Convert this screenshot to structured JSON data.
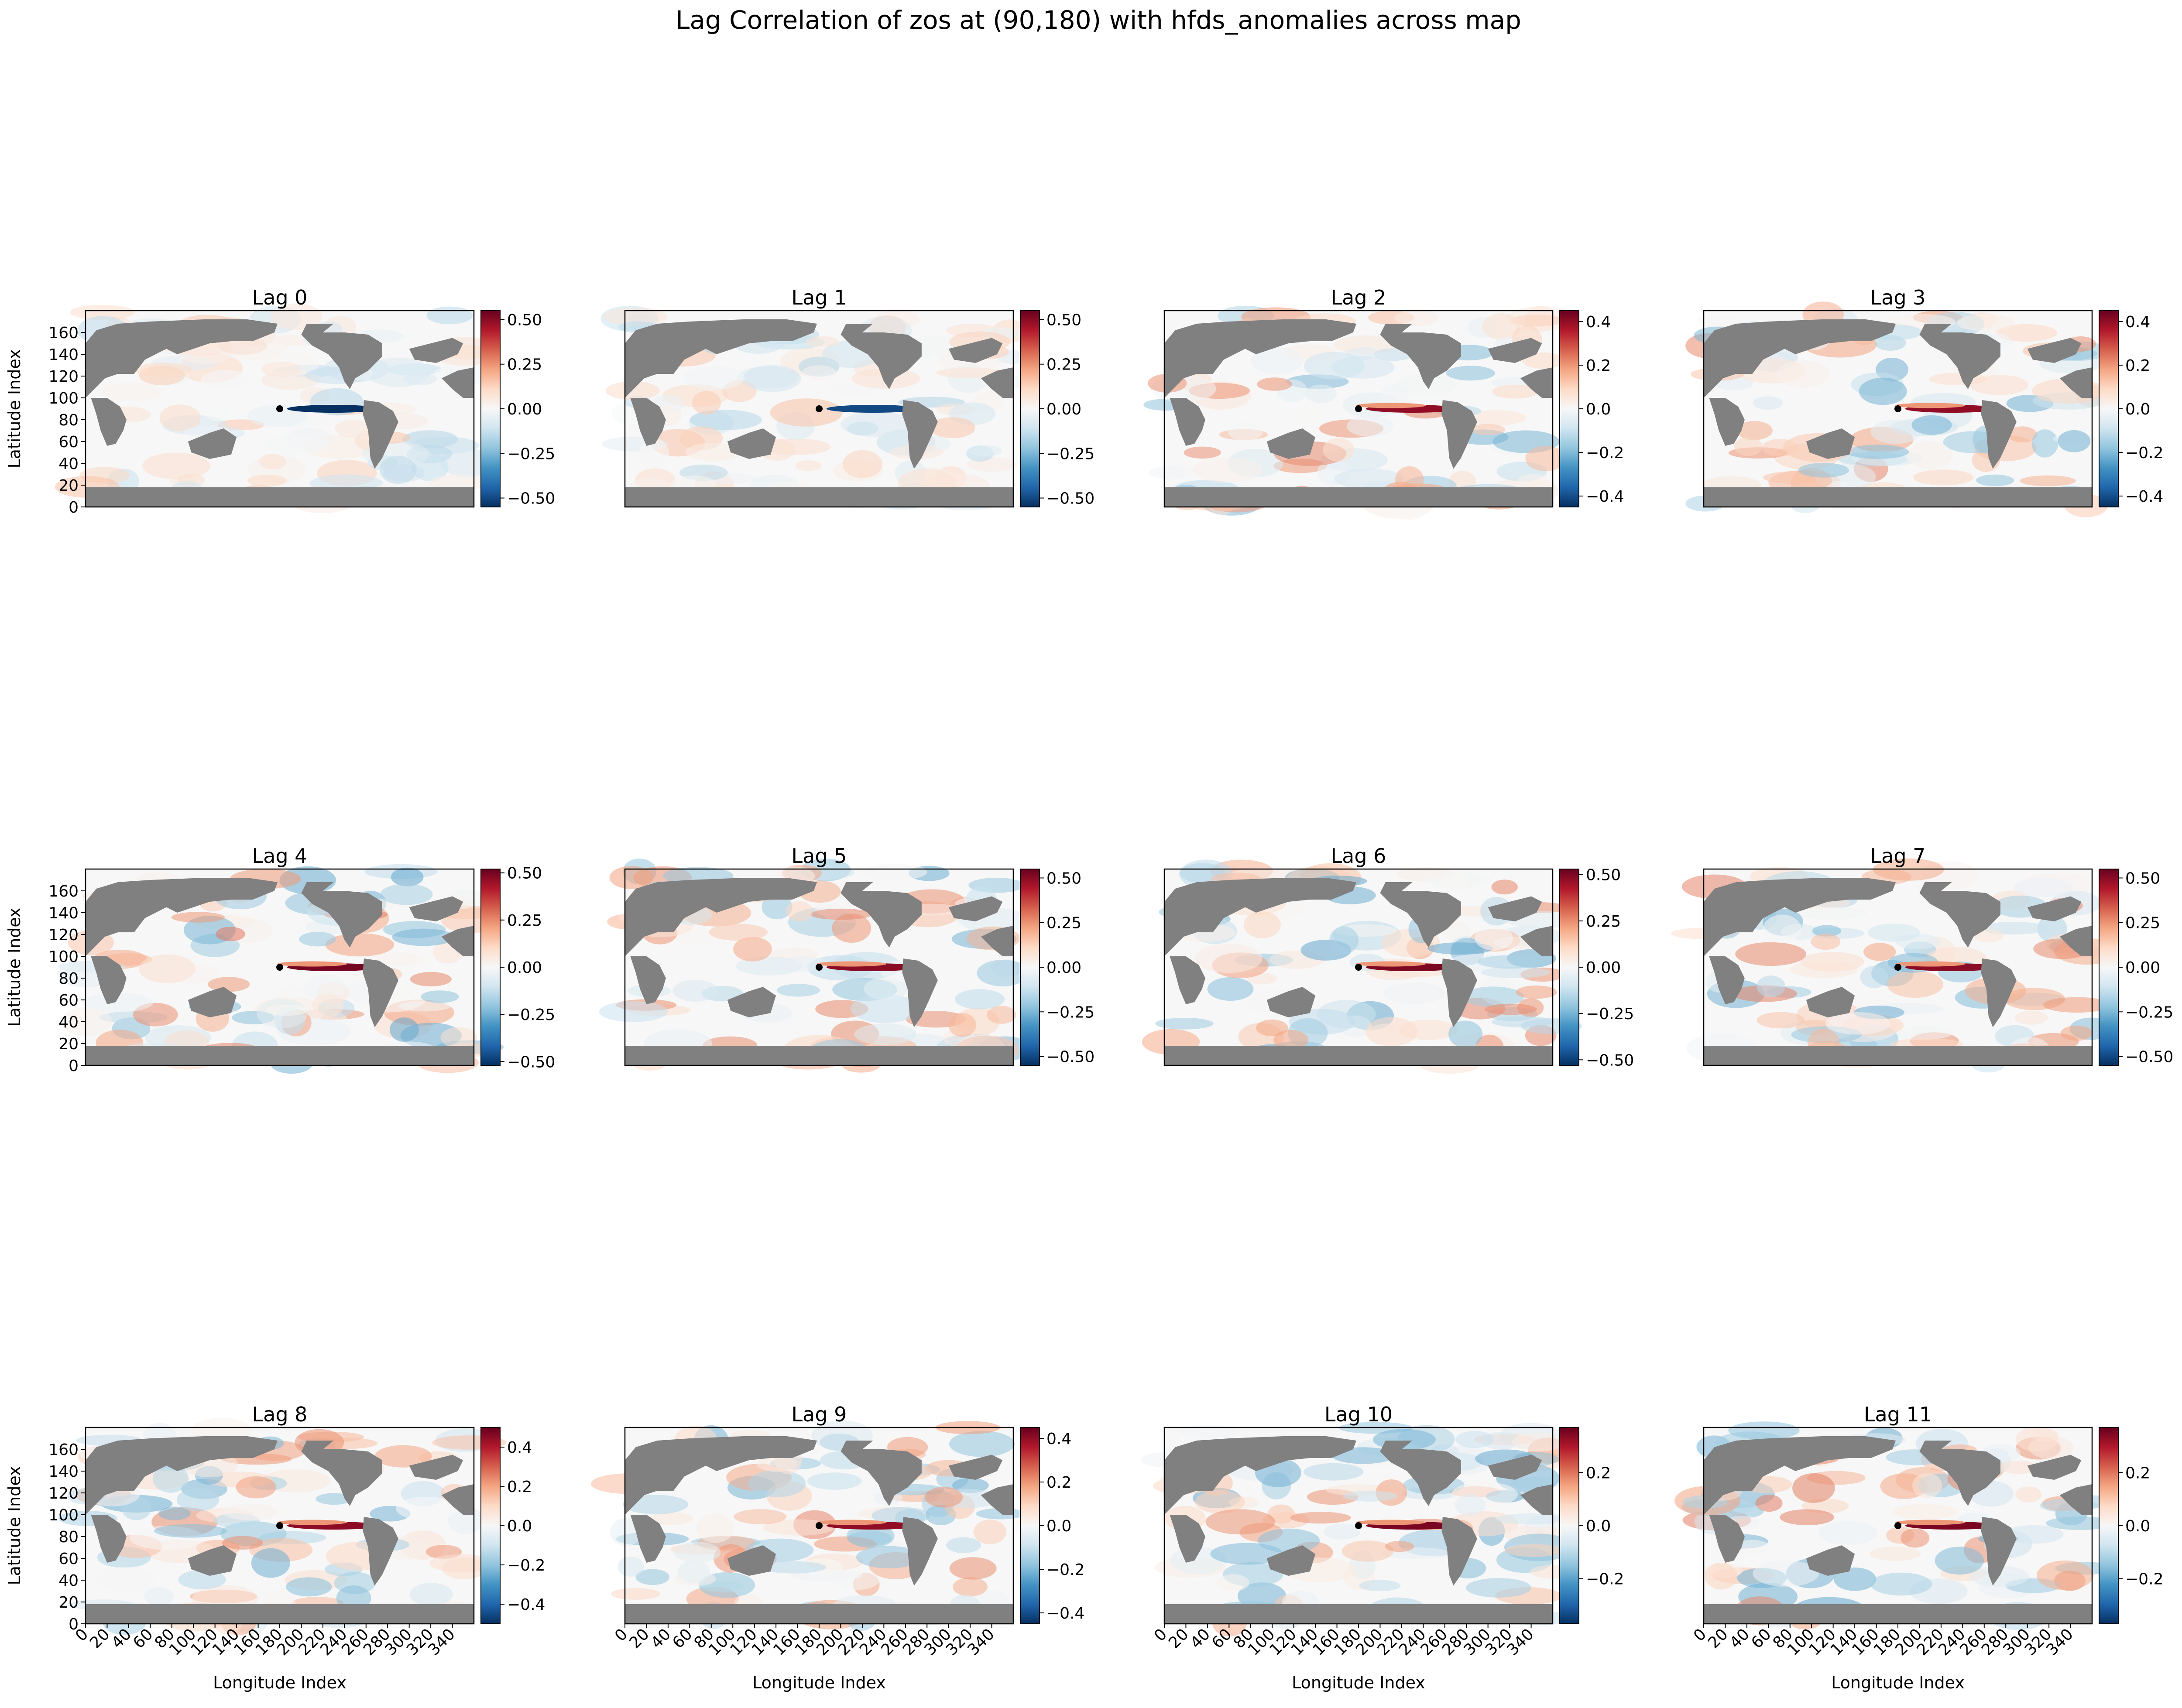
{
  "figure": {
    "title": "Lag Correlation of zos at (90,180) with hfds_anomalies across map"
  },
  "chart_data": {
    "type": "heatmap",
    "title": "Lag Correlation of zos at (90,180) with hfds_anomalies across map",
    "xlabel": "Longitude Index",
    "ylabel": "Latitude Index",
    "xlim": [
      0,
      360
    ],
    "ylim": [
      0,
      180
    ],
    "x_ticks": [
      0,
      20,
      40,
      60,
      80,
      100,
      120,
      140,
      160,
      180,
      200,
      220,
      240,
      260,
      280,
      300,
      320,
      340
    ],
    "y_ticks": [
      0,
      20,
      40,
      60,
      80,
      100,
      120,
      140,
      160
    ],
    "reference_point": {
      "x": 180,
      "y": 90
    },
    "colormap": "RdBu_r",
    "land_color": "#808080",
    "panels": [
      {
        "title": "Lag 0",
        "vmin": -0.55,
        "vmax": 0.55,
        "cbar_ticks": [
          -0.5,
          -0.25,
          0.0,
          0.25,
          0.5
        ],
        "cbar_labels": [
          "−0.50",
          "−0.25",
          "0.00",
          "0.25",
          "0.50"
        ],
        "max_corr": 0.3,
        "min_corr": -0.55
      },
      {
        "title": "Lag 1",
        "vmin": -0.55,
        "vmax": 0.55,
        "cbar_ticks": [
          -0.5,
          -0.25,
          0.0,
          0.25,
          0.5
        ],
        "cbar_labels": [
          "−0.50",
          "−0.25",
          "0.00",
          "0.25",
          "0.50"
        ],
        "max_corr": 0.3,
        "min_corr": -0.5
      },
      {
        "title": "Lag 2",
        "vmin": -0.45,
        "vmax": 0.45,
        "cbar_ticks": [
          -0.4,
          -0.2,
          0.0,
          0.2,
          0.4
        ],
        "cbar_labels": [
          "−0.4",
          "−0.2",
          "0.0",
          "0.2",
          "0.4"
        ],
        "max_corr": 0.4,
        "min_corr": -0.4
      },
      {
        "title": "Lag 3",
        "vmin": -0.45,
        "vmax": 0.45,
        "cbar_ticks": [
          -0.4,
          -0.2,
          0.0,
          0.2,
          0.4
        ],
        "cbar_labels": [
          "−0.4",
          "−0.2",
          "0.0",
          "0.2",
          "0.4"
        ],
        "max_corr": 0.4,
        "min_corr": -0.35
      },
      {
        "title": "Lag 4",
        "vmin": -0.52,
        "vmax": 0.52,
        "cbar_ticks": [
          -0.5,
          -0.25,
          0.0,
          0.25,
          0.5
        ],
        "cbar_labels": [
          "−0.50",
          "−0.25",
          "0.00",
          "0.25",
          "0.50"
        ],
        "max_corr": 0.5,
        "min_corr": -0.2
      },
      {
        "title": "Lag 5",
        "vmin": -0.55,
        "vmax": 0.55,
        "cbar_ticks": [
          -0.5,
          -0.25,
          0.0,
          0.25,
          0.5
        ],
        "cbar_labels": [
          "−0.50",
          "−0.25",
          "0.00",
          "0.25",
          "0.50"
        ],
        "max_corr": 0.5,
        "min_corr": -0.2
      },
      {
        "title": "Lag 6",
        "vmin": -0.53,
        "vmax": 0.53,
        "cbar_ticks": [
          -0.5,
          -0.25,
          0.0,
          0.25,
          0.5
        ],
        "cbar_labels": [
          "−0.50",
          "−0.25",
          "0.00",
          "0.25",
          "0.50"
        ],
        "max_corr": 0.5,
        "min_corr": -0.2
      },
      {
        "title": "Lag 7",
        "vmin": -0.55,
        "vmax": 0.55,
        "cbar_ticks": [
          -0.5,
          -0.25,
          0.0,
          0.25,
          0.5
        ],
        "cbar_labels": [
          "−0.50",
          "−0.25",
          "0.00",
          "0.25",
          "0.50"
        ],
        "max_corr": 0.5,
        "min_corr": -0.2
      },
      {
        "title": "Lag 8",
        "vmin": -0.5,
        "vmax": 0.5,
        "cbar_ticks": [
          -0.4,
          -0.2,
          0.0,
          0.2,
          0.4
        ],
        "cbar_labels": [
          "−0.4",
          "−0.2",
          "0.0",
          "0.2",
          "0.4"
        ],
        "max_corr": 0.45,
        "min_corr": -0.3
      },
      {
        "title": "Lag 9",
        "vmin": -0.45,
        "vmax": 0.45,
        "cbar_ticks": [
          -0.4,
          -0.2,
          0.0,
          0.2,
          0.4
        ],
        "cbar_labels": [
          "−0.4",
          "−0.2",
          "0.0",
          "0.2",
          "0.4"
        ],
        "max_corr": 0.4,
        "min_corr": -0.35
      },
      {
        "title": "Lag 10",
        "vmin": -0.37,
        "vmax": 0.37,
        "cbar_ticks": [
          -0.2,
          0.0,
          0.2
        ],
        "cbar_labels": [
          "−0.2",
          "0.0",
          "0.2"
        ],
        "max_corr": 0.35,
        "min_corr": -0.35
      },
      {
        "title": "Lag 11",
        "vmin": -0.37,
        "vmax": 0.37,
        "cbar_ticks": [
          -0.2,
          0.0,
          0.2
        ],
        "cbar_labels": [
          "−0.2",
          "0.0",
          "0.2"
        ],
        "max_corr": 0.35,
        "min_corr": -0.35
      }
    ]
  }
}
